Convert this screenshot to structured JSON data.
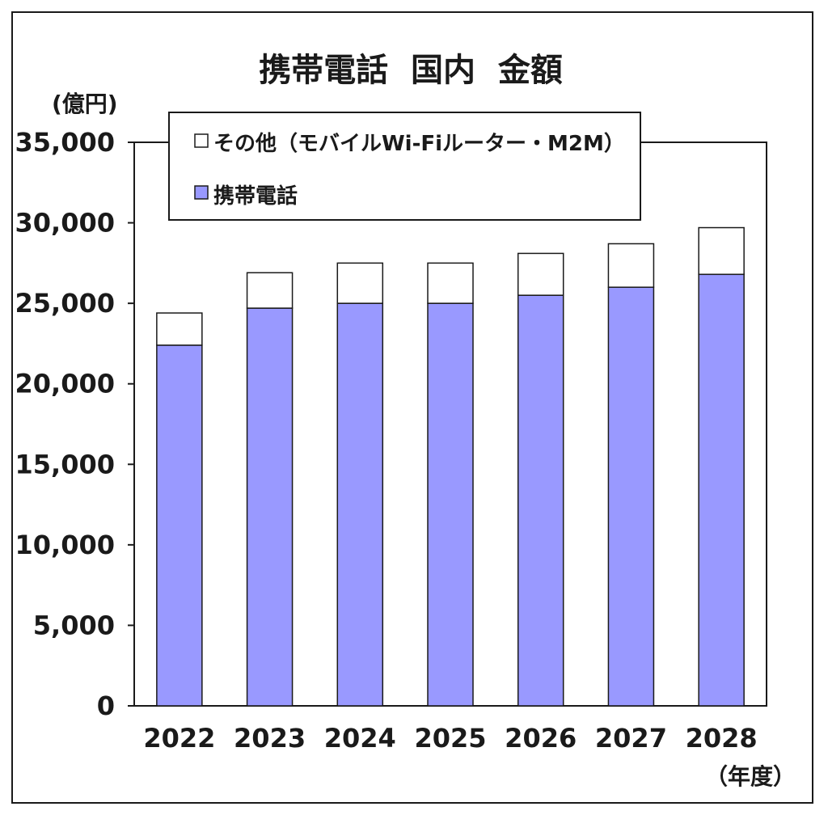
{
  "chart_data": {
    "type": "bar",
    "stacked": true,
    "title": "携帯電話  国内  金額",
    "y_unit": "(億円)",
    "x_unit": "（年度）",
    "categories": [
      "2022",
      "2023",
      "2024",
      "2025",
      "2026",
      "2027",
      "2028"
    ],
    "series": [
      {
        "name": "携帯電話",
        "values": [
          22400,
          24700,
          25000,
          25000,
          25500,
          26000,
          26800
        ],
        "color": "#9999ff"
      },
      {
        "name": "その他（モバイルWi-Fiルーター・M2M）",
        "values": [
          2000,
          2200,
          2500,
          2500,
          2600,
          2700,
          2900
        ],
        "color": "#ffffff"
      }
    ],
    "ylim": [
      0,
      35000
    ],
    "yticks": [
      0,
      5000,
      10000,
      15000,
      20000,
      25000,
      30000,
      35000
    ],
    "ytick_labels": [
      "0",
      "5,000",
      "10,000",
      "15,000",
      "20,000",
      "25,000",
      "30,000",
      "35,000"
    ],
    "grid": false,
    "legend_position": "top-left"
  }
}
